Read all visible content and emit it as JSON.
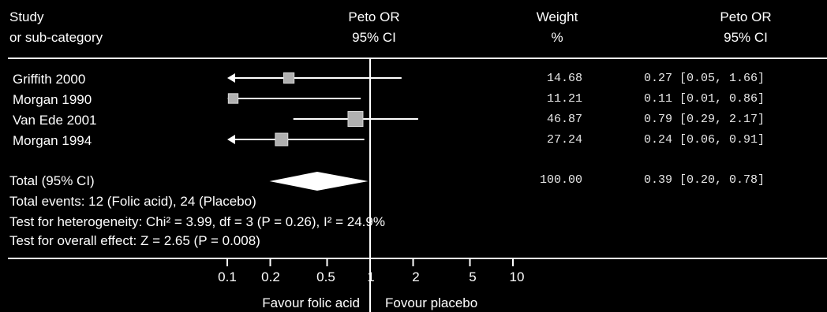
{
  "header": {
    "study_l1": "Study",
    "study_l2": "or sub-category",
    "or_l1": "Peto OR",
    "or_l2": "95% CI",
    "weight_l1": "Weight",
    "weight_l2": "%",
    "or2_l1": "Peto OR",
    "or2_l2": "95% CI"
  },
  "chart_data": {
    "type": "forest",
    "scale": "log",
    "xlim": [
      0.1,
      10
    ],
    "ticks": [
      0.1,
      0.2,
      0.5,
      1,
      2,
      5,
      10
    ],
    "tick_labels": [
      "0.1",
      "0.2",
      "0.5",
      "1",
      "2",
      "5",
      "10"
    ],
    "reference_line": 1,
    "studies": [
      {
        "name": "Griffith 2000",
        "or": 0.27,
        "lo": 0.05,
        "hi": 1.66,
        "weight": "14.68",
        "ci_text": "0.27 [0.05, 1.66]",
        "arrow_left": true
      },
      {
        "name": "Morgan 1990",
        "or": 0.11,
        "lo": 0.01,
        "hi": 0.86,
        "weight": "11.21",
        "ci_text": "0.11 [0.01, 0.86]",
        "arrow_left": true
      },
      {
        "name": "Van Ede 2001",
        "or": 0.79,
        "lo": 0.29,
        "hi": 2.17,
        "weight": "46.87",
        "ci_text": "0.79 [0.29, 2.17]",
        "arrow_left": false
      },
      {
        "name": "Morgan 1994",
        "or": 0.24,
        "lo": 0.06,
        "hi": 0.91,
        "weight": "27.24",
        "ci_text": "0.24 [0.06, 0.91]",
        "arrow_left": true
      }
    ],
    "total": {
      "label": "Total (95% CI)",
      "or": 0.39,
      "lo": 0.2,
      "hi": 0.78,
      "weight": "100.00",
      "ci_text": "0.39 [0.20, 0.78]"
    },
    "xlabel_left": "Favour folic acid",
    "xlabel_right": "Fovour placebo"
  },
  "summary": {
    "events": "Total events: 12 (Folic acid), 24 (Placebo)",
    "heterogeneity": "Test for heterogeneity: Chi² = 3.99, df = 3 (P = 0.26), I² = 24.9%",
    "overall": "Test for overall effect: Z = 2.65 (P = 0.008)"
  },
  "colors": {
    "background": "#000000",
    "foreground": "#ffffff",
    "marker": "#b0b0b0"
  }
}
